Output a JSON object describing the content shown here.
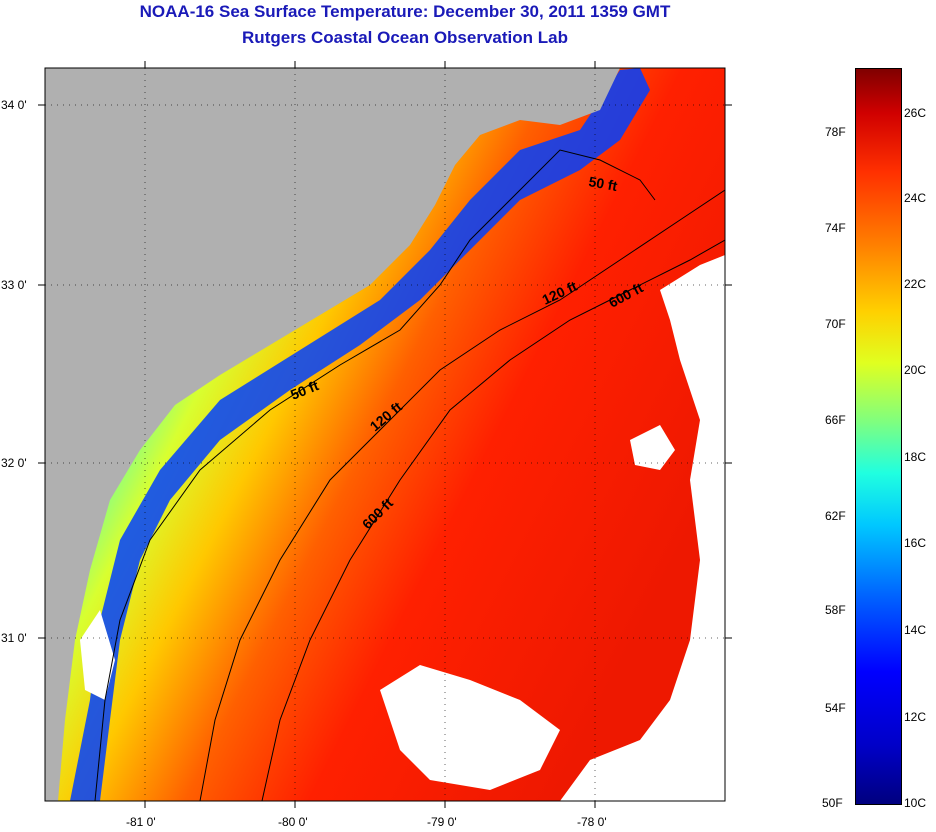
{
  "title": {
    "line1": "NOAA-16 Sea Surface Temperature:  December 30, 2011 1359 GMT",
    "line2": "Rutgers Coastal Ocean Observation Lab"
  },
  "map": {
    "lat_ticks": [
      "34 0'",
      "33 0'",
      "32 0'",
      "31 0'"
    ],
    "lon_ticks": [
      "-81 0'",
      "-80 0'",
      "-79 0'",
      "-78 0'"
    ],
    "isobath_labels": [
      {
        "text": "50 ft",
        "id": "a"
      },
      {
        "text": "50 ft",
        "id": "b"
      },
      {
        "text": "120 ft",
        "id": "a"
      },
      {
        "text": "120 ft",
        "id": "b"
      },
      {
        "text": "600 ft",
        "id": "a"
      },
      {
        "text": "600 ft",
        "id": "b"
      }
    ],
    "colors": {
      "land": "#b0b0b0",
      "cloud": "#ffffff"
    }
  },
  "colorbar": {
    "fahrenheit": [
      "78F",
      "74F",
      "70F",
      "66F",
      "62F",
      "58F",
      "54F",
      "50F"
    ],
    "celsius": [
      "26C",
      "24C",
      "22C",
      "20C",
      "18C",
      "16C",
      "14C",
      "12C",
      "10C"
    ]
  }
}
